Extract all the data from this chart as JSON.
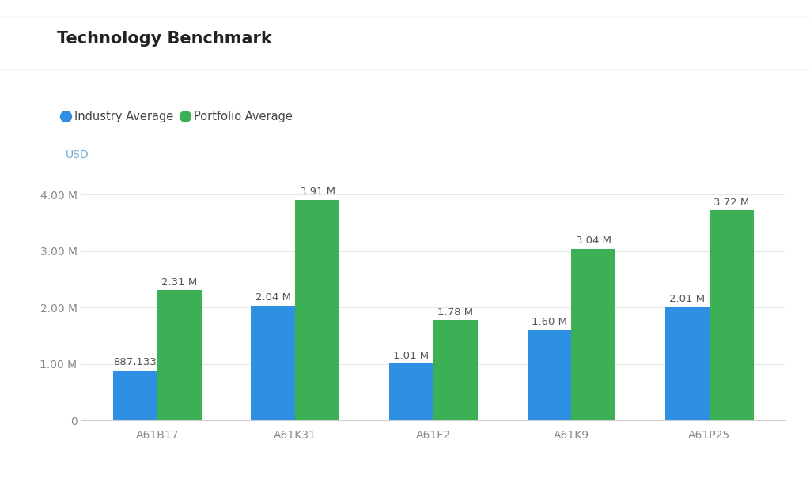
{
  "title": "Technology Benchmark",
  "categories": [
    "A61B17",
    "A61K31",
    "A61F2",
    "A61K9",
    "A61P25"
  ],
  "industry_avg": [
    887133,
    2040000,
    1010000,
    1600000,
    2010000
  ],
  "portfolio_avg": [
    2310000,
    3910000,
    1780000,
    3040000,
    3720000
  ],
  "industry_labels": [
    "887,133",
    "2.04 M",
    "1.01 M",
    "1.60 M",
    "2.01 M"
  ],
  "portfolio_labels": [
    "2.31 M",
    "3.91 M",
    "1.78 M",
    "3.04 M",
    "3.72 M"
  ],
  "bar_color_industry": "#2F8FE3",
  "bar_color_portfolio": "#3CB054",
  "background_color": "#ffffff",
  "ylabel": "USD",
  "ylabel_color": "#6baed6",
  "ylim": [
    0,
    4400000
  ],
  "yticks": [
    0,
    1000000,
    2000000,
    3000000,
    4000000
  ],
  "ytick_labels": [
    "0",
    "1.00 M",
    "2.00 M",
    "3.00 M",
    "4.00 M"
  ],
  "legend_industry": "Industry Average",
  "legend_portfolio": "Portfolio Average",
  "title_fontsize": 15,
  "label_fontsize": 9.5,
  "axis_fontsize": 10,
  "tick_color": "#888888",
  "label_color": "#555555",
  "grid_color": "#e8e8e8",
  "bar_width": 0.32
}
